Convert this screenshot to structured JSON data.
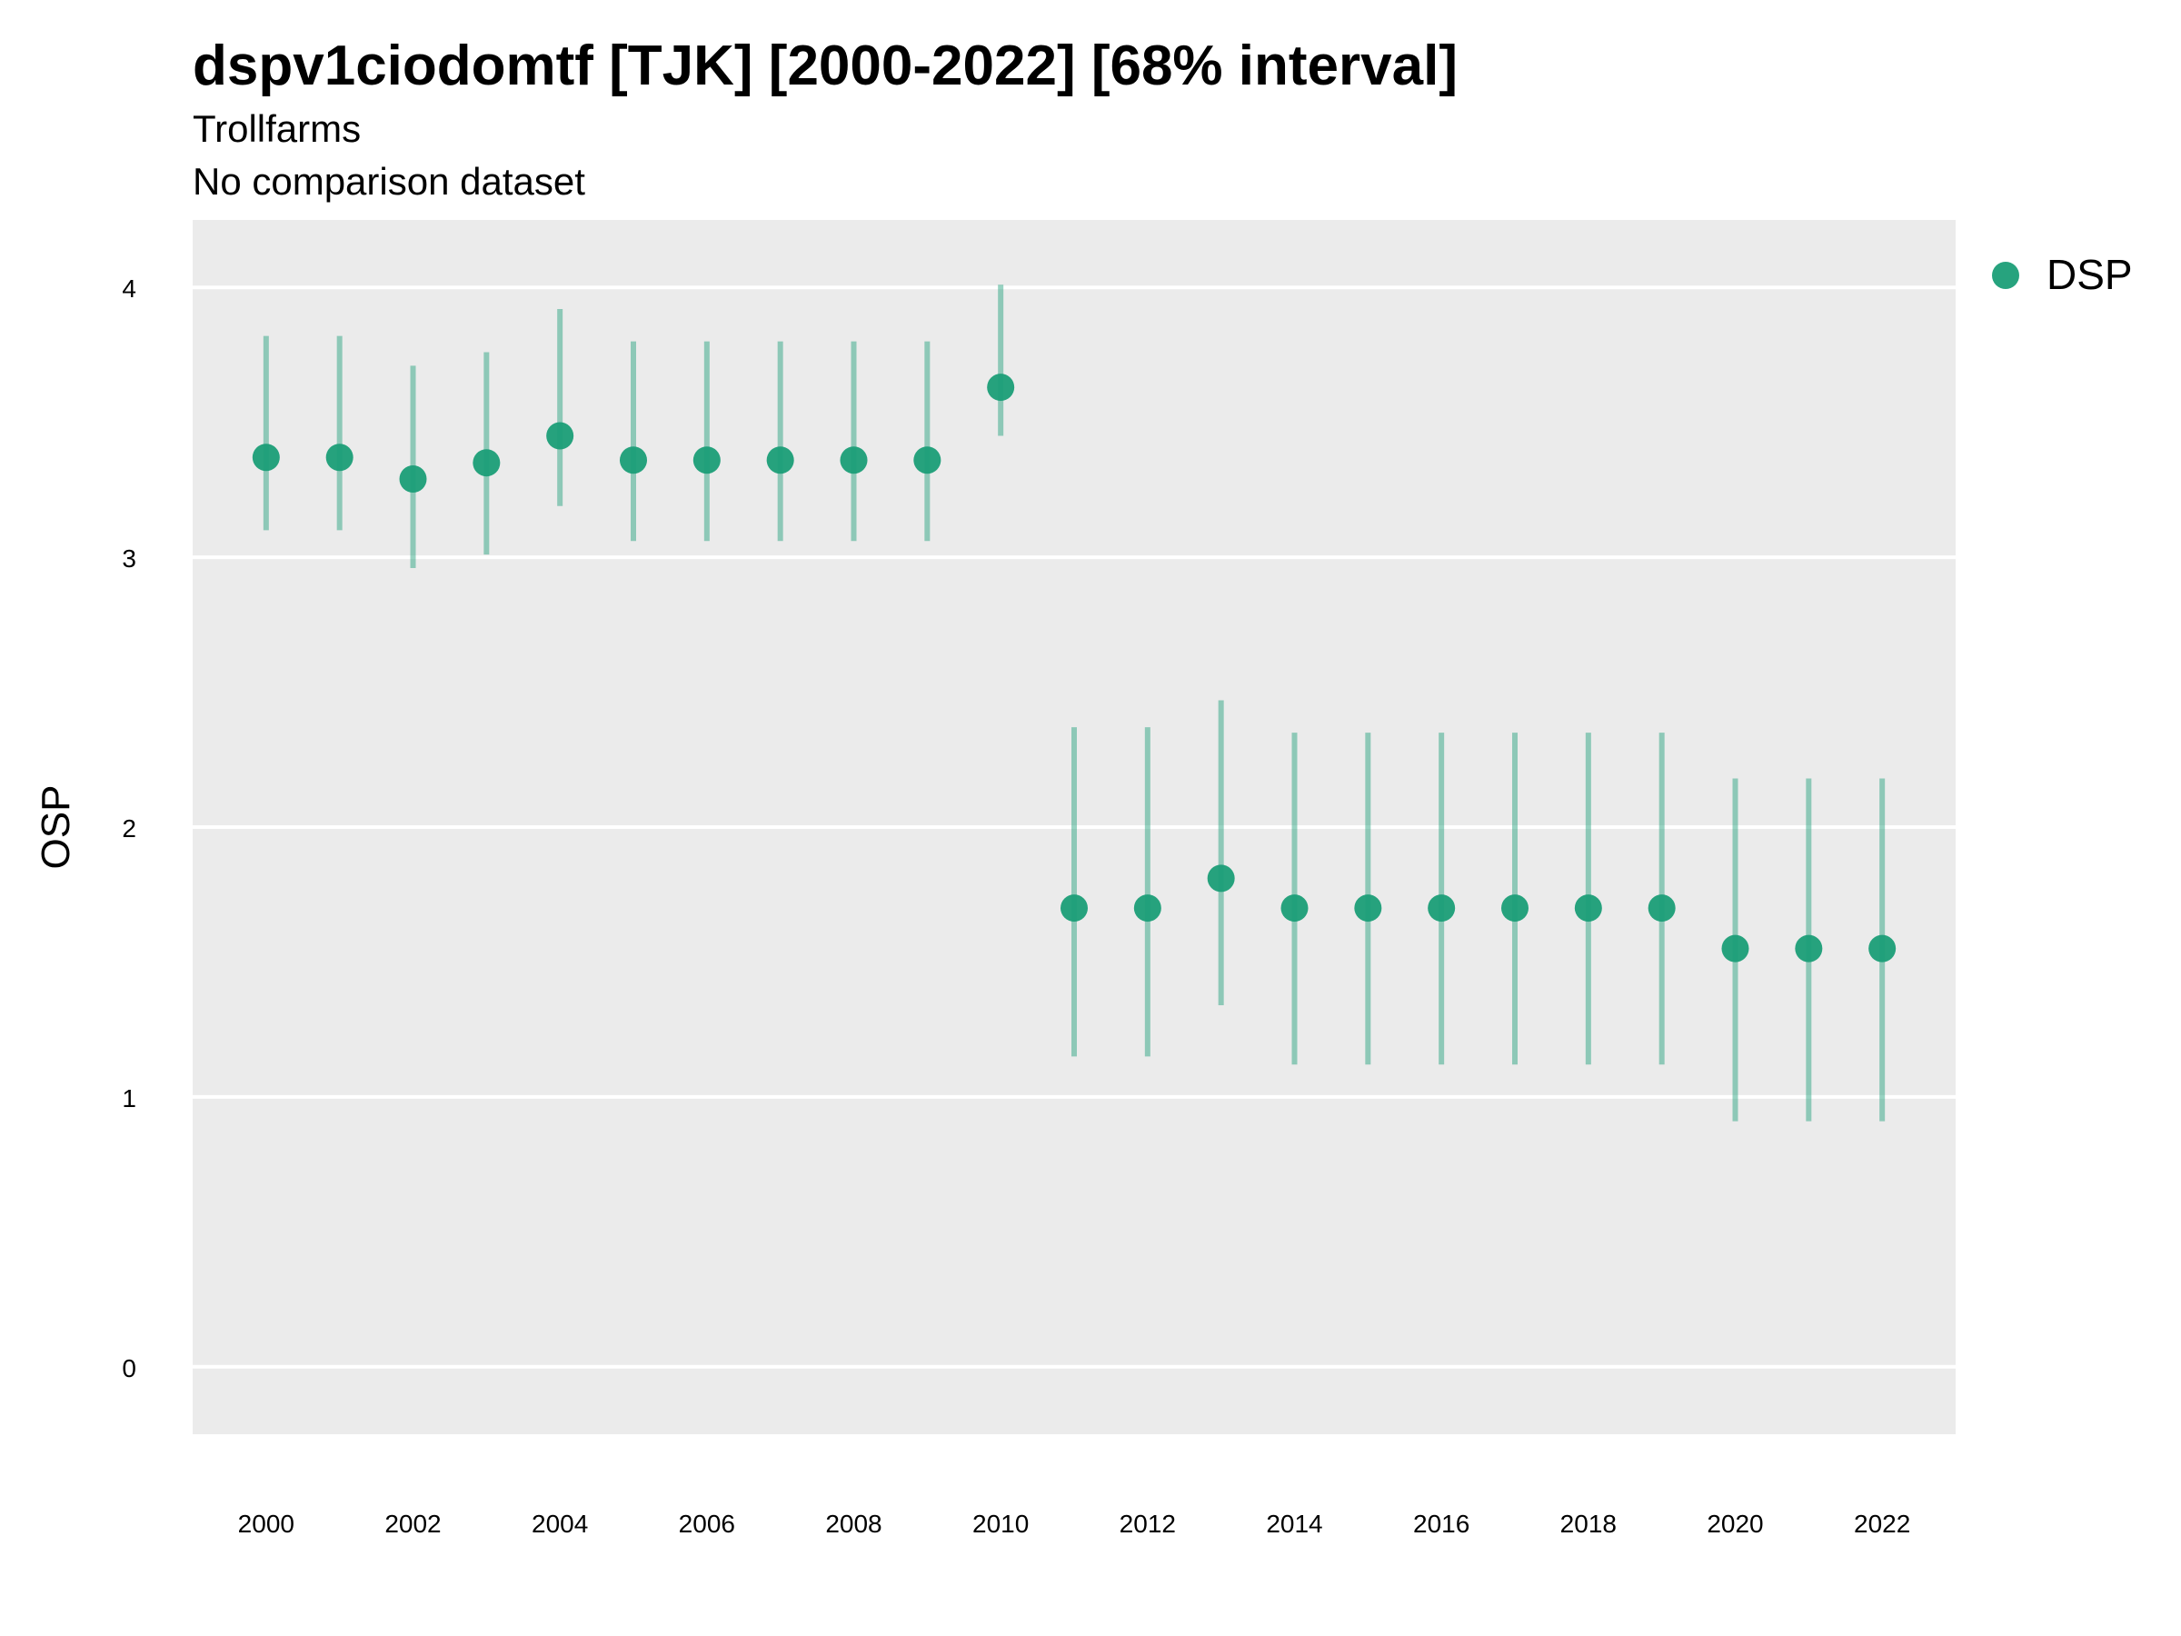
{
  "chart_data": {
    "type": "scatter",
    "title": "dspv1ciodomtf [TJK] [2000-2022] [68% interval]",
    "subtitle": "Trollfarms",
    "caption": "No comparison dataset",
    "xlabel": "",
    "ylabel": "OSP",
    "xlim": [
      1999,
      2023
    ],
    "ylim": [
      -0.25,
      4.25
    ],
    "x_ticks": [
      "2000",
      "2002",
      "2004",
      "2006",
      "2008",
      "2010",
      "2012",
      "2014",
      "2016",
      "2018",
      "2020",
      "2022"
    ],
    "y_ticks": [
      "0",
      "1",
      "2",
      "3",
      "4"
    ],
    "grid": true,
    "legend_position": "right",
    "series": [
      {
        "name": "DSP",
        "color": "#1b9e77",
        "x": [
          2000,
          2001,
          2002,
          2003,
          2004,
          2005,
          2006,
          2007,
          2008,
          2009,
          2010,
          2011,
          2012,
          2013,
          2014,
          2015,
          2016,
          2017,
          2018,
          2019,
          2020,
          2021,
          2022
        ],
        "values": [
          3.37,
          3.37,
          3.29,
          3.35,
          3.45,
          3.36,
          3.36,
          3.36,
          3.36,
          3.36,
          3.63,
          1.7,
          1.7,
          1.81,
          1.7,
          1.7,
          1.7,
          1.7,
          1.7,
          1.7,
          1.55,
          1.55,
          1.55
        ],
        "lower": [
          3.1,
          3.1,
          2.96,
          3.01,
          3.19,
          3.06,
          3.06,
          3.06,
          3.06,
          3.06,
          3.45,
          1.15,
          1.15,
          1.34,
          1.12,
          1.12,
          1.12,
          1.12,
          1.12,
          1.12,
          0.91,
          0.91,
          0.91
        ],
        "upper": [
          3.82,
          3.82,
          3.71,
          3.76,
          3.92,
          3.8,
          3.8,
          3.8,
          3.8,
          3.8,
          4.01,
          2.37,
          2.37,
          2.47,
          2.35,
          2.35,
          2.35,
          2.35,
          2.35,
          2.35,
          2.18,
          2.18,
          2.18
        ]
      }
    ]
  }
}
